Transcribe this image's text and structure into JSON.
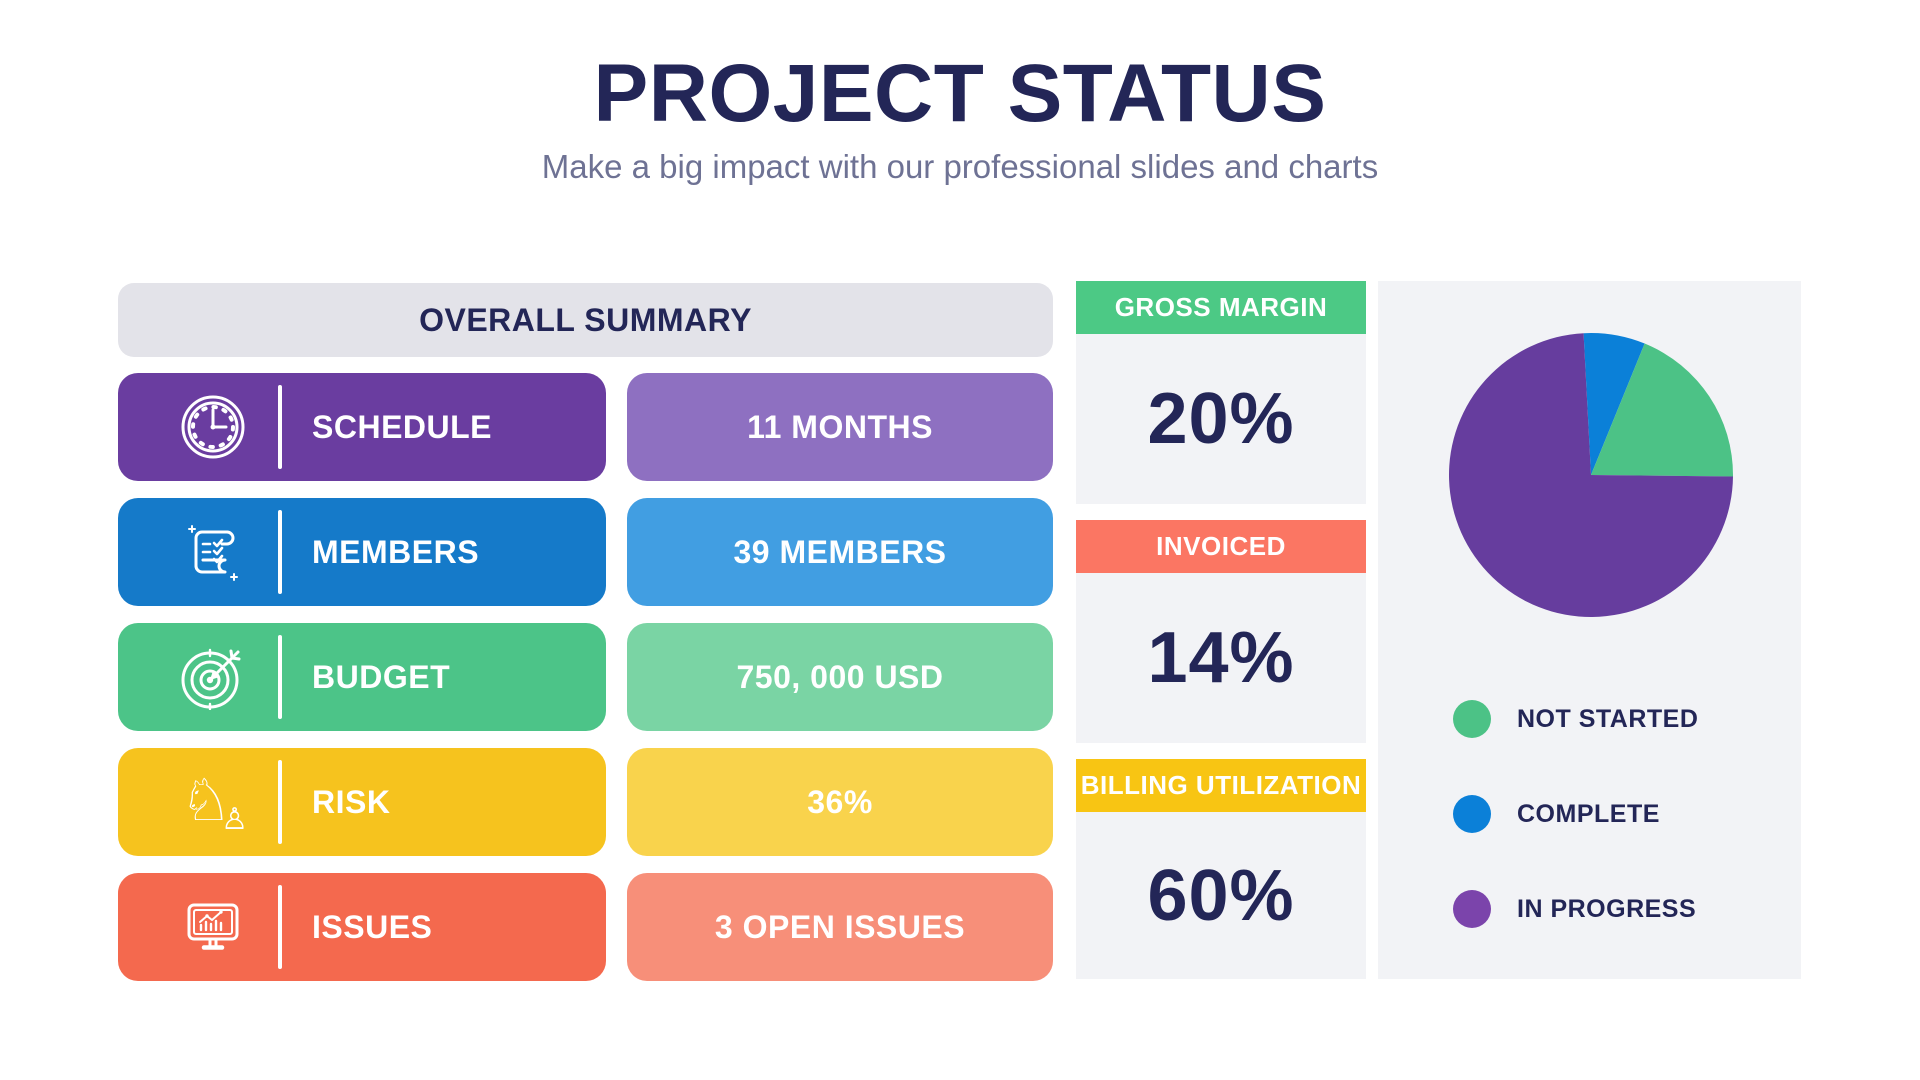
{
  "header": {
    "title": "PROJECT STATUS",
    "subtitle": "Make a big impact with our professional slides and charts"
  },
  "summary": {
    "heading": "OVERALL SUMMARY",
    "rows": [
      {
        "label": "SCHEDULE",
        "value": "11 MONTHS",
        "icon": "clock-icon",
        "color": "purple"
      },
      {
        "label": "MEMBERS",
        "value": "39 MEMBERS",
        "icon": "scroll-checklist-icon",
        "color": "blue"
      },
      {
        "label": "BUDGET",
        "value": "750, 000 USD",
        "icon": "target-arrow-icon",
        "color": "green"
      },
      {
        "label": "RISK",
        "value": "36%",
        "icon": "chess-knight-icon",
        "color": "yellow"
      },
      {
        "label": "ISSUES",
        "value": "3 OPEN ISSUES",
        "icon": "presentation-chart-icon",
        "color": "coral"
      }
    ]
  },
  "metrics": [
    {
      "label": "GROSS MARGIN",
      "value": "20%",
      "color": "green"
    },
    {
      "label": "INVOICED",
      "value": "14%",
      "color": "coral"
    },
    {
      "label": "BILLING UTILIZATION",
      "value": "60%",
      "color": "yellow"
    }
  ],
  "chart_data": {
    "type": "pie",
    "title": "",
    "start_angle_deg": -3,
    "slices": [
      {
        "label": "COMPLETE",
        "value": 7,
        "color": "#0b80d8"
      },
      {
        "label": "NOT STARTED",
        "value": 19,
        "color": "#4cc286"
      },
      {
        "label": "IN PROGRESS",
        "value": 74,
        "color": "#663d9e"
      }
    ],
    "legend": [
      {
        "label": "NOT STARTED",
        "color": "#4cc286"
      },
      {
        "label": "COMPLETE",
        "color": "#0b80d8"
      },
      {
        "label": "IN PROGRESS",
        "color": "#7b44ab"
      }
    ],
    "legend_position": "below-chart"
  },
  "palette": {
    "purple": "#6a3da0",
    "purple-light": "#8e70c1",
    "blue": "#157ac9",
    "blue-light": "#419ee2",
    "green": "#4cc488",
    "green-light": "#7ad4a4",
    "yellow": "#f6c31e",
    "yellow-light": "#f9d34c",
    "coral": "#f4694e",
    "coral-light": "#f78f79",
    "hdr-green": "#4cc985",
    "hdr-coral": "#fb7663",
    "hdr-yellow": "#f8c513",
    "navy": "#232657",
    "subtitle": "#6e7294",
    "gray-bar": "#e3e3e9",
    "gray-body": "#f2f3f6"
  }
}
